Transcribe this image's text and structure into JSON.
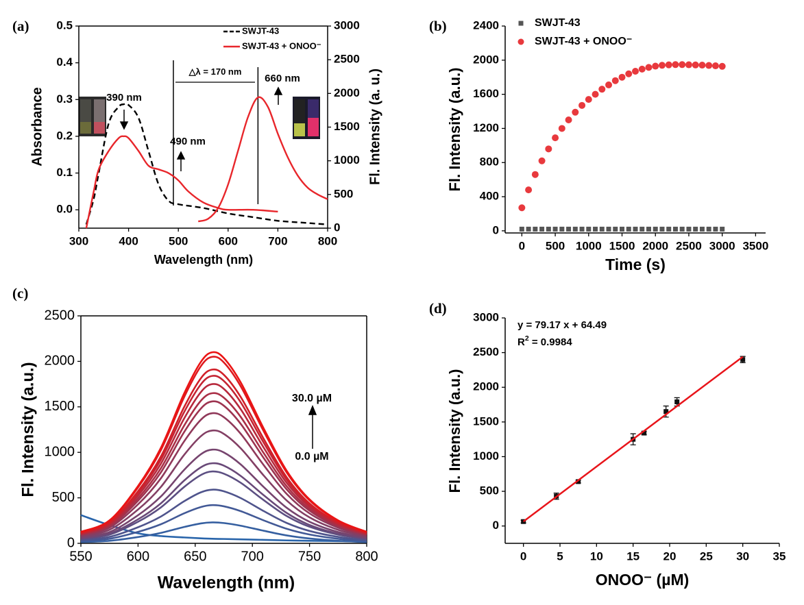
{
  "chart_data": [
    {
      "type": "line",
      "panel_label": "(a)",
      "xlabel": "Wavelength (nm)",
      "ylabel": "Absorbance",
      "y2label": "Fl. Intensity (a. u.)",
      "xlim": [
        300,
        800
      ],
      "xticks": [
        300,
        400,
        500,
        600,
        700,
        800
      ],
      "ylim": [
        -0.05,
        0.5
      ],
      "yticks": [
        {
          "value": 0,
          "label": "0.0"
        },
        0.1,
        0.2,
        0.3,
        0.4,
        0.5
      ],
      "y2lim": [
        0,
        3000
      ],
      "y2ticks": [
        0,
        500,
        1000,
        1500,
        2000,
        2500,
        3000
      ],
      "vlines": [
        490,
        660
      ],
      "series": [
        {
          "name": "SWJT-43",
          "color": "#000000",
          "dash": true,
          "x": [
            315,
            330,
            340,
            360,
            380,
            390,
            400,
            420,
            440,
            460,
            480,
            500,
            550,
            600,
            650,
            700,
            750,
            800
          ],
          "values": [
            -0.04,
            0.03,
            0.1,
            0.235,
            0.28,
            0.287,
            0.285,
            0.25,
            0.16,
            0.07,
            0.025,
            0.015,
            0.005,
            -0.01,
            -0.02,
            -0.03,
            -0.035,
            -0.04
          ]
        },
        {
          "name": "SWJT-43 + ONOO⁻",
          "color": "#e8262b",
          "x": [
            315,
            330,
            340,
            360,
            380,
            390,
            400,
            420,
            440,
            460,
            480,
            500,
            520,
            550,
            580,
            600,
            650,
            700
          ],
          "values": [
            -0.05,
            0.05,
            0.11,
            0.16,
            0.195,
            0.2,
            0.195,
            0.16,
            0.12,
            0.11,
            0.1,
            0.08,
            0.05,
            0.02,
            0.005,
            0,
            0,
            -0.005
          ]
        },
        {
          "color": "#e8262b",
          "axis": "y2",
          "x": [
            540,
            560,
            580,
            600,
            620,
            640,
            660,
            680,
            700,
            720,
            740,
            760,
            780,
            800
          ],
          "values": [
            100,
            140,
            300,
            650,
            1150,
            1650,
            1940,
            1800,
            1400,
            1050,
            780,
            600,
            500,
            430
          ]
        }
      ],
      "annotations": [
        {
          "text": "390 nm"
        },
        {
          "text": "490 nm"
        },
        {
          "text": "660 nm"
        },
        {
          "text": "△λ = 170 nm",
          "color": "#e8262b"
        }
      ]
    },
    {
      "type": "scatter",
      "panel_label": "(b)",
      "xlabel": "Time (s)",
      "ylabel": "Fl. Intensity (a.u.)",
      "xlim": [
        -250,
        3650
      ],
      "xticks": [
        0,
        500,
        1000,
        1500,
        2000,
        2500,
        3000,
        3500
      ],
      "ylim": [
        -25,
        2400
      ],
      "yticks": [
        0,
        400,
        800,
        1200,
        1600,
        2000,
        2400
      ],
      "x": [
        0,
        100,
        200,
        300,
        400,
        500,
        600,
        700,
        800,
        900,
        1000,
        1100,
        1200,
        1300,
        1400,
        1500,
        1600,
        1700,
        1800,
        1900,
        2000,
        2100,
        2200,
        2300,
        2400,
        2500,
        2600,
        2700,
        2800,
        2900,
        3000
      ],
      "series": [
        {
          "name": "SWJT-43",
          "color": "#555555",
          "marker": "square",
          "values": [
            20,
            20,
            20,
            20,
            20,
            20,
            20,
            20,
            20,
            20,
            20,
            20,
            20,
            20,
            20,
            20,
            20,
            20,
            20,
            20,
            20,
            20,
            20,
            20,
            20,
            20,
            20,
            20,
            20,
            20,
            20
          ]
        },
        {
          "name": "SWJT-43 + ONOO⁻",
          "color": "#e8393d",
          "marker": "circle",
          "values": [
            270,
            480,
            660,
            820,
            960,
            1090,
            1200,
            1300,
            1390,
            1470,
            1540,
            1600,
            1660,
            1710,
            1760,
            1800,
            1840,
            1870,
            1895,
            1915,
            1930,
            1940,
            1945,
            1948,
            1948,
            1946,
            1944,
            1942,
            1938,
            1934,
            1928
          ]
        }
      ]
    },
    {
      "type": "line",
      "panel_label": "(c)",
      "xlabel": "Wavelength (nm)",
      "ylabel": "Fl. Intensity (a.u.)",
      "xlim": [
        550,
        800
      ],
      "xticks": [
        550,
        600,
        650,
        700,
        750,
        800
      ],
      "ylim": [
        0,
        2500
      ],
      "yticks": [
        0,
        500,
        1000,
        1500,
        2000,
        2500
      ],
      "x": [
        550,
        575,
        600,
        620,
        640,
        655,
        665,
        675,
        690,
        710,
        730,
        750,
        775,
        800
      ],
      "series": [
        {
          "color": "#2864aa",
          "values": [
            310,
            200,
            110,
            80,
            65,
            55,
            50,
            48,
            44,
            38,
            32,
            28,
            24,
            20
          ]
        },
        {
          "color": "#355fa0",
          "values": [
            14,
            28,
            69,
            115,
            179,
            219,
            230,
            223,
            193,
            138,
            87,
            53,
            28,
            14
          ]
        },
        {
          "color": "#425996",
          "values": [
            25,
            50,
            126,
            210,
            328,
            399,
            420,
            407,
            353,
            252,
            160,
            97,
            50,
            25
          ]
        },
        {
          "color": "#4f548c",
          "values": [
            35,
            71,
            177,
            295,
            460,
            561,
            590,
            572,
            496,
            354,
            224,
            136,
            71,
            35
          ]
        },
        {
          "color": "#5c4f82",
          "values": [
            47,
            95,
            237,
            395,
            616,
            751,
            790,
            766,
            664,
            474,
            300,
            182,
            95,
            47
          ]
        },
        {
          "color": "#694978",
          "values": [
            53,
            106,
            264,
            440,
            686,
            836,
            880,
            854,
            739,
            528,
            334,
            202,
            106,
            53
          ]
        },
        {
          "color": "#76446e",
          "values": [
            62,
            124,
            309,
            515,
            803,
            979,
            1030,
            999,
            865,
            618,
            391,
            237,
            124,
            62
          ]
        },
        {
          "color": "#833f64",
          "values": [
            74,
            149,
            372,
            620,
            967,
            1178,
            1240,
            1203,
            1042,
            744,
            471,
            285,
            149,
            74
          ]
        },
        {
          "color": "#90395a",
          "values": [
            86,
            172,
            429,
            715,
            1115,
            1359,
            1430,
            1387,
            1201,
            858,
            543,
            329,
            172,
            86
          ]
        },
        {
          "color": "#9d3450",
          "values": [
            94,
            187,
            468,
            780,
            1217,
            1482,
            1560,
            1513,
            1310,
            936,
            593,
            359,
            187,
            94
          ]
        },
        {
          "color": "#aa2f46",
          "values": [
            99,
            198,
            495,
            825,
            1287,
            1568,
            1650,
            1601,
            1386,
            990,
            627,
            380,
            198,
            99
          ]
        },
        {
          "color": "#b7293c",
          "values": [
            105,
            210,
            525,
            875,
            1365,
            1663,
            1750,
            1698,
            1470,
            1050,
            665,
            403,
            210,
            105
          ]
        },
        {
          "color": "#c42432",
          "values": [
            110,
            221,
            552,
            920,
            1435,
            1748,
            1840,
            1785,
            1546,
            1104,
            699,
            423,
            221,
            110
          ]
        },
        {
          "color": "#d11f28",
          "values": [
            115,
            229,
            573,
            955,
            1490,
            1815,
            1910,
            1853,
            1604,
            1146,
            726,
            439,
            229,
            115
          ]
        },
        {
          "color": "#de191e",
          "values": [
            123,
            246,
            615,
            1025,
            1599,
            1948,
            2050,
            1989,
            1722,
            1230,
            779,
            472,
            246,
            123
          ]
        },
        {
          "color": "#eb1414",
          "values": [
            126,
            252,
            630,
            1050,
            1638,
            1995,
            2100,
            2037,
            1764,
            1260,
            798,
            483,
            252,
            126
          ]
        }
      ],
      "annotations": [
        {
          "text": "30.0 µM"
        },
        {
          "text": "0.0 µM"
        }
      ]
    },
    {
      "type": "scatter",
      "panel_label": "(d)",
      "xlabel": "ONOO⁻ (µM)",
      "ylabel": "Fl. Intensity (a.u.)",
      "xlim": [
        -2.5,
        35
      ],
      "xticks": [
        0,
        5,
        10,
        15,
        20,
        25,
        30,
        35
      ],
      "ylim": [
        -250,
        3000
      ],
      "yticks": [
        0,
        500,
        1000,
        1500,
        2000,
        2500,
        3000
      ],
      "series": [
        {
          "color": "#111111",
          "marker": "square",
          "x": [
            0,
            4.5,
            7.5,
            15,
            16.5,
            19.5,
            21,
            30
          ],
          "values": [
            64,
            430,
            640,
            1250,
            1340,
            1650,
            1790,
            2400
          ],
          "errors": [
            20,
            45,
            20,
            80,
            25,
            80,
            60,
            45
          ]
        }
      ],
      "fit": {
        "color": "#e8141a",
        "x": [
          0,
          30
        ],
        "values": [
          64.49,
          2439.59
        ]
      },
      "annotations": [
        {
          "text": "y = 79.17 x + 64.49"
        },
        {
          "text": "R",
          "sup": "2",
          "tail": " = 0.9984"
        }
      ]
    }
  ]
}
